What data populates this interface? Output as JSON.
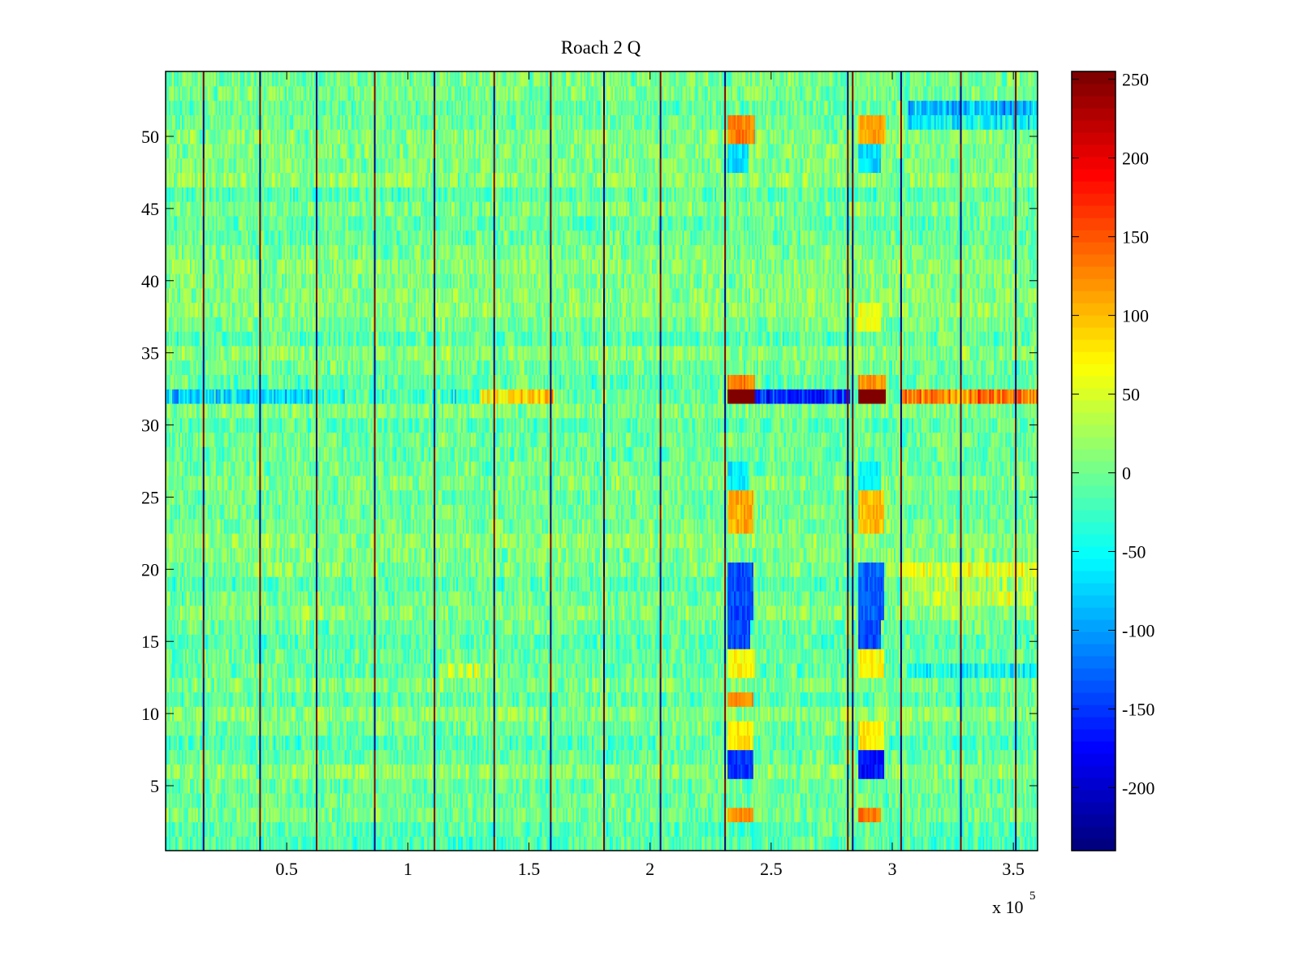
{
  "chart_data": {
    "type": "heatmap",
    "title": "Roach 2 Q",
    "xlabel": "",
    "ylabel": "",
    "x_multiplier_label": "x 10",
    "x_multiplier_exponent": "5",
    "xlim": [
      0,
      360000
    ],
    "ylim": [
      0.5,
      54.5
    ],
    "n_rows": 54,
    "n_cols": 540,
    "x_ticks": [
      50000,
      100000,
      150000,
      200000,
      250000,
      300000,
      350000
    ],
    "x_tick_labels": [
      "0.5",
      "1",
      "1.5",
      "2",
      "2.5",
      "3",
      "3.5"
    ],
    "y_ticks": [
      5,
      10,
      15,
      20,
      25,
      30,
      35,
      40,
      45,
      50
    ],
    "y_tick_labels": [
      "5",
      "10",
      "15",
      "20",
      "25",
      "30",
      "35",
      "40",
      "45",
      "50"
    ],
    "colorbar": {
      "colormap": "jet",
      "clim": [
        -240,
        255
      ],
      "ticks": [
        250,
        200,
        150,
        100,
        50,
        0,
        -50,
        -100,
        -150,
        -200
      ],
      "tick_labels": [
        "250",
        "200",
        "150",
        "100",
        "50",
        "0",
        "-50",
        "-100",
        "-150",
        "-200"
      ],
      "levels": 64
    },
    "background_level": 0,
    "noise_amplitude": 40,
    "vertical_stripes_x": [
      15500,
      39000,
      62500,
      86000,
      110800,
      135700,
      158800,
      181300,
      204500,
      230700,
      281400,
      283400,
      303500,
      328300,
      350800
    ],
    "vertical_stripe_pattern": "alternating +250 / -240 in row blocks",
    "row_offsets": [
      {
        "row": 32,
        "x_range": [
          0,
          60000
        ],
        "value": -60
      },
      {
        "row": 32,
        "x_range": [
          60000,
          130000
        ],
        "value": -20
      },
      {
        "row": 32,
        "x_range": [
          130000,
          160000
        ],
        "value": 90
      },
      {
        "row": 32,
        "x_range": [
          243000,
          282000
        ],
        "value": -150
      },
      {
        "row": 32,
        "x_range": [
          304000,
          360000
        ],
        "value": 130
      },
      {
        "row": 52,
        "x_range": [
          306000,
          360000
        ],
        "value": -80
      },
      {
        "row": 51,
        "x_range": [
          306000,
          360000
        ],
        "value": -50
      },
      {
        "row": 13,
        "x_range": [
          113000,
          135000
        ],
        "value": 50
      },
      {
        "row": 13,
        "x_range": [
          306000,
          360000
        ],
        "value": -40
      },
      {
        "row": 20,
        "x_range": [
          304000,
          360000
        ],
        "value": 50
      },
      {
        "row": 19,
        "x_range": [
          304000,
          360000
        ],
        "value": 40
      },
      {
        "row": 18,
        "x_range": [
          304000,
          360000
        ],
        "value": 35
      }
    ],
    "blocks": [
      {
        "rows": [
          32,
          32
        ],
        "x_range": [
          232000,
          243000
        ],
        "value": 255
      },
      {
        "rows": [
          32,
          32
        ],
        "x_range": [
          286000,
          297000
        ],
        "value": 255
      },
      {
        "rows": [
          33,
          33
        ],
        "x_range": [
          232000,
          243000
        ],
        "value": 130
      },
      {
        "rows": [
          33,
          33
        ],
        "x_range": [
          286000,
          297000
        ],
        "value": 120
      },
      {
        "rows": [
          50,
          51
        ],
        "x_range": [
          232000,
          243000
        ],
        "value": 130
      },
      {
        "rows": [
          50,
          51
        ],
        "x_range": [
          286000,
          297000
        ],
        "value": 110
      },
      {
        "rows": [
          48,
          49
        ],
        "x_range": [
          232000,
          240000
        ],
        "value": -70
      },
      {
        "rows": [
          48,
          49
        ],
        "x_range": [
          286000,
          295000
        ],
        "value": -70
      },
      {
        "rows": [
          23,
          25
        ],
        "x_range": [
          232000,
          242000
        ],
        "value": 110
      },
      {
        "rows": [
          23,
          25
        ],
        "x_range": [
          286000,
          296000
        ],
        "value": 100
      },
      {
        "rows": [
          17,
          20
        ],
        "x_range": [
          232000,
          242000
        ],
        "value": -140
      },
      {
        "rows": [
          17,
          20
        ],
        "x_range": [
          286000,
          296000
        ],
        "value": -130
      },
      {
        "rows": [
          15,
          16
        ],
        "x_range": [
          232000,
          241000
        ],
        "value": -140
      },
      {
        "rows": [
          15,
          16
        ],
        "x_range": [
          286000,
          295000
        ],
        "value": -140
      },
      {
        "rows": [
          13,
          14
        ],
        "x_range": [
          232000,
          243000
        ],
        "value": 70
      },
      {
        "rows": [
          13,
          14
        ],
        "x_range": [
          286000,
          296000
        ],
        "value": 70
      },
      {
        "rows": [
          11,
          11
        ],
        "x_range": [
          232000,
          242000
        ],
        "value": 120
      },
      {
        "rows": [
          8,
          9
        ],
        "x_range": [
          232000,
          242000
        ],
        "value": 80
      },
      {
        "rows": [
          8,
          9
        ],
        "x_range": [
          286000,
          296000
        ],
        "value": 80
      },
      {
        "rows": [
          6,
          7
        ],
        "x_range": [
          232000,
          242000
        ],
        "value": -150
      },
      {
        "rows": [
          6,
          7
        ],
        "x_range": [
          286000,
          296000
        ],
        "value": -170
      },
      {
        "rows": [
          3,
          3
        ],
        "x_range": [
          232000,
          242000
        ],
        "value": 120
      },
      {
        "rows": [
          3,
          3
        ],
        "x_range": [
          286000,
          295000
        ],
        "value": 130
      },
      {
        "rows": [
          37,
          38
        ],
        "x_range": [
          286000,
          295000
        ],
        "value": 60
      },
      {
        "rows": [
          26,
          27
        ],
        "x_range": [
          232000,
          240000
        ],
        "value": -60
      },
      {
        "rows": [
          26,
          27
        ],
        "x_range": [
          286000,
          295000
        ],
        "value": -60
      }
    ]
  }
}
